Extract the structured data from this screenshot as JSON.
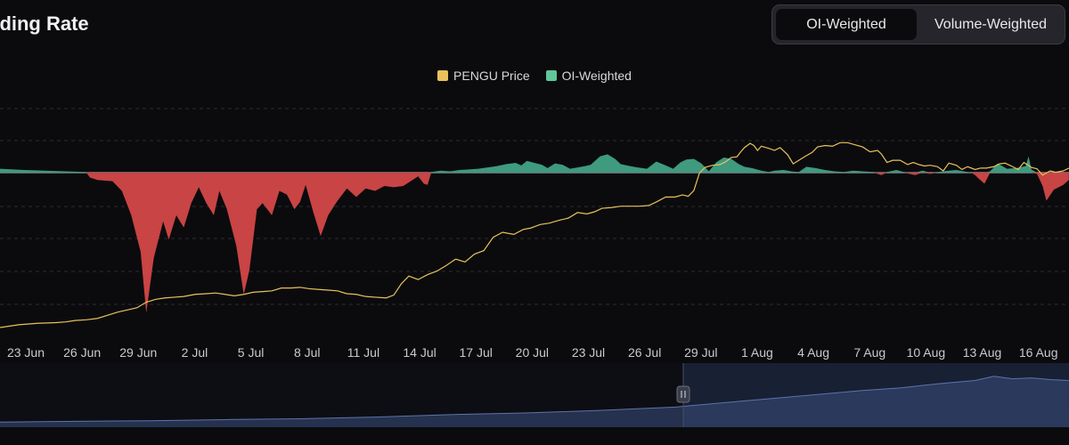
{
  "header": {
    "title": "nding Rate"
  },
  "toggle": {
    "options": [
      {
        "label": "OI-Weighted",
        "active": true
      },
      {
        "label": "Volume-Weighted",
        "active": false
      }
    ]
  },
  "legend": {
    "items": [
      {
        "label": "PENGU Price",
        "color": "#e8c25a"
      },
      {
        "label": "OI-Weighted",
        "color": "#5fc79a"
      }
    ]
  },
  "colors": {
    "positive": "#3f9a7e",
    "negative": "#c94444",
    "price": "#e8c25a",
    "navigator": "#3b4f7e"
  },
  "chart_data": {
    "type": "area",
    "x_ticks": [
      "23 Jun",
      "26 Jun",
      "29 Jun",
      "2 Jul",
      "5 Jul",
      "8 Jul",
      "11 Jul",
      "14 Jul",
      "17 Jul",
      "20 Jul",
      "23 Jul",
      "26 Jul",
      "29 Jul",
      "1 Aug",
      "4 Aug",
      "7 Aug",
      "10 Aug",
      "13 Aug",
      "16 Aug"
    ],
    "x_start": "2025-06-22",
    "x_end": "2025-08-17",
    "series": [
      {
        "name": "OI-Weighted",
        "points": [
          [
            0,
            0.6
          ],
          [
            1.3,
            0.4
          ],
          [
            3.5,
            0.2
          ],
          [
            4.6,
            0.1
          ],
          [
            4.8,
            -0.4
          ],
          [
            5.2,
            -0.6
          ],
          [
            6,
            -0.7
          ],
          [
            6.5,
            -1.5
          ],
          [
            7,
            -3.5
          ],
          [
            7.5,
            -6.5
          ],
          [
            7.8,
            -11.5
          ],
          [
            8.2,
            -7
          ],
          [
            8.7,
            -4
          ],
          [
            9,
            -5.5
          ],
          [
            9.4,
            -3.5
          ],
          [
            9.8,
            -4.5
          ],
          [
            10.2,
            -2.5
          ],
          [
            10.6,
            -1.2
          ],
          [
            11,
            -2.5
          ],
          [
            11.4,
            -3.5
          ],
          [
            11.7,
            -1.5
          ],
          [
            12.1,
            -3
          ],
          [
            12.6,
            -6
          ],
          [
            13,
            -10
          ],
          [
            13.3,
            -8
          ],
          [
            13.7,
            -3
          ],
          [
            14,
            -2.5
          ],
          [
            14.5,
            -3.5
          ],
          [
            14.9,
            -1.5
          ],
          [
            15.3,
            -1.8
          ],
          [
            15.7,
            -3
          ],
          [
            16,
            -2.4
          ],
          [
            16.3,
            -1
          ],
          [
            16.7,
            -3.2
          ],
          [
            17.1,
            -5.2
          ],
          [
            17.5,
            -3.5
          ],
          [
            18,
            -2.3
          ],
          [
            18.5,
            -1.3
          ],
          [
            19,
            -2
          ],
          [
            19.5,
            -1.3
          ],
          [
            20,
            -1.5
          ],
          [
            20.5,
            -1.1
          ],
          [
            21,
            -1.2
          ],
          [
            21.5,
            -1.1
          ],
          [
            22,
            -0.6
          ],
          [
            22.3,
            -0.3
          ],
          [
            22.6,
            -0.9
          ],
          [
            22.8,
            -1
          ],
          [
            23,
            0.1
          ],
          [
            23.5,
            0.3
          ],
          [
            24,
            0.2
          ],
          [
            24.5,
            0.4
          ],
          [
            25,
            0.5
          ],
          [
            25.5,
            0.6
          ],
          [
            26,
            0.8
          ],
          [
            26.5,
            1
          ],
          [
            27,
            1.3
          ],
          [
            27.5,
            1.5
          ],
          [
            27.8,
            1.1
          ],
          [
            28.1,
            1.8
          ],
          [
            28.5,
            1.5
          ],
          [
            28.9,
            1.2
          ],
          [
            29.2,
            0.7
          ],
          [
            29.6,
            1.4
          ],
          [
            30,
            1.2
          ],
          [
            30.4,
            0.6
          ],
          [
            30.8,
            0.8
          ],
          [
            31.2,
            1
          ],
          [
            31.5,
            1.2
          ],
          [
            32,
            2.5
          ],
          [
            32.4,
            2.8
          ],
          [
            32.8,
            2.1
          ],
          [
            33.1,
            1.3
          ],
          [
            33.6,
            1
          ],
          [
            34,
            0.8
          ],
          [
            34.5,
            0.6
          ],
          [
            35,
            1.7
          ],
          [
            35.5,
            1.1
          ],
          [
            35.9,
            0.6
          ],
          [
            36.3,
            1.6
          ],
          [
            36.6,
            2
          ],
          [
            37,
            2.1
          ],
          [
            37.4,
            1.4
          ],
          [
            37.8,
            0.2
          ],
          [
            38.2,
            1.6
          ],
          [
            38.6,
            2.3
          ],
          [
            39,
            2.1
          ],
          [
            39.4,
            1.3
          ],
          [
            39.7,
            0.9
          ],
          [
            40.1,
            0.7
          ],
          [
            40.6,
            0.3
          ],
          [
            41,
            0.1
          ],
          [
            41.3,
            0.3
          ],
          [
            41.8,
            0.4
          ],
          [
            42.2,
            0.2
          ],
          [
            42.6,
            0.1
          ],
          [
            43,
            0.9
          ],
          [
            43.5,
            0.7
          ],
          [
            44,
            0.4
          ],
          [
            44.5,
            0.2
          ],
          [
            45,
            0.1
          ],
          [
            45.5,
            0.3
          ],
          [
            46,
            0.2
          ],
          [
            46.6,
            0.1
          ],
          [
            47,
            -0.2
          ],
          [
            47.3,
            0.1
          ],
          [
            47.8,
            0.4
          ],
          [
            48.2,
            0.1
          ],
          [
            48.8,
            -0.2
          ],
          [
            49.2,
            0.3
          ],
          [
            49.6,
            -0.1
          ],
          [
            50,
            0.1
          ],
          [
            50.6,
            0.3
          ],
          [
            51,
            0.4
          ],
          [
            51.4,
            0.2
          ],
          [
            51.8,
            0
          ],
          [
            52,
            -0.2
          ],
          [
            52.2,
            -0.5
          ],
          [
            52.5,
            -0.9
          ],
          [
            52.8,
            0.2
          ],
          [
            53.2,
            1.4
          ],
          [
            53.7,
            0.6
          ],
          [
            54.2,
            0.7
          ],
          [
            54.7,
            1
          ],
          [
            54.85,
            2.5
          ],
          [
            55,
            0.5
          ],
          [
            55.3,
            -0.1
          ],
          [
            55.6,
            -1.1
          ],
          [
            55.8,
            -2.3
          ],
          [
            56.2,
            -1.4
          ],
          [
            56.7,
            -1
          ],
          [
            57,
            -0.6
          ]
        ]
      },
      {
        "name": "PENGU Price",
        "points": [
          [
            0,
            0.009
          ],
          [
            1,
            0.0094
          ],
          [
            2,
            0.0096
          ],
          [
            3,
            0.0097
          ],
          [
            3.5,
            0.0098
          ],
          [
            4,
            0.01
          ],
          [
            4.6,
            0.0101
          ],
          [
            5.2,
            0.0103
          ],
          [
            5.8,
            0.0108
          ],
          [
            6.3,
            0.0112
          ],
          [
            6.8,
            0.0115
          ],
          [
            7.3,
            0.0118
          ],
          [
            7.8,
            0.0126
          ],
          [
            8.3,
            0.013
          ],
          [
            8.8,
            0.0132
          ],
          [
            9.3,
            0.0133
          ],
          [
            9.8,
            0.0134
          ],
          [
            10.4,
            0.0137
          ],
          [
            11,
            0.0138
          ],
          [
            11.5,
            0.0139
          ],
          [
            12,
            0.0137
          ],
          [
            12.5,
            0.0135
          ],
          [
            13,
            0.0137
          ],
          [
            13.5,
            0.014
          ],
          [
            14,
            0.0141
          ],
          [
            14.5,
            0.0142
          ],
          [
            15,
            0.0146
          ],
          [
            15.5,
            0.0146
          ],
          [
            16,
            0.0147
          ],
          [
            16.5,
            0.0145
          ],
          [
            17,
            0.0144
          ],
          [
            17.5,
            0.0143
          ],
          [
            18,
            0.0142
          ],
          [
            18.5,
            0.0138
          ],
          [
            19,
            0.0137
          ],
          [
            19.5,
            0.0134
          ],
          [
            20,
            0.0133
          ],
          [
            20.6,
            0.0132
          ],
          [
            21,
            0.0136
          ],
          [
            21.4,
            0.0152
          ],
          [
            21.8,
            0.0163
          ],
          [
            22.3,
            0.0158
          ],
          [
            22.8,
            0.0165
          ],
          [
            23.3,
            0.017
          ],
          [
            23.8,
            0.0178
          ],
          [
            24.3,
            0.0187
          ],
          [
            24.8,
            0.0183
          ],
          [
            25.3,
            0.0194
          ],
          [
            25.8,
            0.0199
          ],
          [
            26.3,
            0.0218
          ],
          [
            26.8,
            0.0225
          ],
          [
            27.4,
            0.0222
          ],
          [
            27.9,
            0.0229
          ],
          [
            28.3,
            0.0231
          ],
          [
            28.8,
            0.0236
          ],
          [
            29.3,
            0.0238
          ],
          [
            29.8,
            0.0242
          ],
          [
            30.3,
            0.0245
          ],
          [
            30.8,
            0.0253
          ],
          [
            31.3,
            0.0251
          ],
          [
            31.7,
            0.0254
          ],
          [
            32.1,
            0.0259
          ],
          [
            32.6,
            0.026
          ],
          [
            33.1,
            0.0262
          ],
          [
            33.6,
            0.0262
          ],
          [
            34.1,
            0.0262
          ],
          [
            34.6,
            0.0263
          ],
          [
            35,
            0.0268
          ],
          [
            35.5,
            0.0275
          ],
          [
            36,
            0.0275
          ],
          [
            36.4,
            0.0278
          ],
          [
            36.7,
            0.0276
          ],
          [
            37,
            0.0284
          ],
          [
            37.3,
            0.0309
          ],
          [
            37.6,
            0.0317
          ],
          [
            38,
            0.032
          ],
          [
            38.4,
            0.0321
          ],
          [
            38.7,
            0.0325
          ],
          [
            39,
            0.0331
          ],
          [
            39.3,
            0.0332
          ],
          [
            39.5,
            0.0339
          ],
          [
            39.7,
            0.0345
          ],
          [
            40,
            0.0351
          ],
          [
            40.2,
            0.0348
          ],
          [
            40.4,
            0.0341
          ],
          [
            40.6,
            0.0347
          ],
          [
            41,
            0.0344
          ],
          [
            41.3,
            0.0341
          ],
          [
            41.6,
            0.0345
          ],
          [
            42,
            0.0335
          ],
          [
            42.3,
            0.0322
          ],
          [
            42.6,
            0.0327
          ],
          [
            42.9,
            0.0332
          ],
          [
            43.3,
            0.0338
          ],
          [
            43.6,
            0.0346
          ],
          [
            44,
            0.0348
          ],
          [
            44.4,
            0.0347
          ],
          [
            44.8,
            0.0352
          ],
          [
            45.2,
            0.0352
          ],
          [
            45.6,
            0.0349
          ],
          [
            46,
            0.0346
          ],
          [
            46.4,
            0.0339
          ],
          [
            46.8,
            0.0341
          ],
          [
            47,
            0.0336
          ],
          [
            47.3,
            0.0324
          ],
          [
            47.6,
            0.0327
          ],
          [
            48,
            0.0327
          ],
          [
            48.4,
            0.0321
          ],
          [
            48.7,
            0.0324
          ],
          [
            49,
            0.0321
          ],
          [
            49.3,
            0.0319
          ],
          [
            49.6,
            0.032
          ],
          [
            50,
            0.0318
          ],
          [
            50.3,
            0.0312
          ],
          [
            50.6,
            0.0323
          ],
          [
            51,
            0.032
          ],
          [
            51.3,
            0.0314
          ],
          [
            51.6,
            0.0318
          ],
          [
            52,
            0.0314
          ],
          [
            52.3,
            0.0316
          ],
          [
            52.6,
            0.0316
          ],
          [
            53,
            0.0318
          ],
          [
            53.3,
            0.0322
          ],
          [
            53.6,
            0.0323
          ],
          [
            54,
            0.0318
          ],
          [
            54.3,
            0.0314
          ],
          [
            54.6,
            0.0324
          ],
          [
            55,
            0.0317
          ],
          [
            55.3,
            0.0315
          ],
          [
            55.6,
            0.0306
          ],
          [
            56,
            0.0312
          ],
          [
            56.3,
            0.031
          ],
          [
            56.7,
            0.0312
          ],
          [
            57,
            0.0316
          ]
        ]
      },
      {
        "name": "navigator",
        "points": [
          [
            0,
            0.011
          ],
          [
            4,
            0.0115
          ],
          [
            8,
            0.0118
          ],
          [
            12,
            0.0125
          ],
          [
            16,
            0.013
          ],
          [
            20,
            0.014
          ],
          [
            24,
            0.0155
          ],
          [
            28,
            0.0165
          ],
          [
            32,
            0.018
          ],
          [
            36,
            0.02
          ],
          [
            38,
            0.022
          ],
          [
            40,
            0.024
          ],
          [
            42,
            0.026
          ],
          [
            44,
            0.028
          ],
          [
            46,
            0.03
          ],
          [
            48,
            0.0315
          ],
          [
            50,
            0.034
          ],
          [
            52,
            0.036
          ],
          [
            53,
            0.0385
          ],
          [
            54,
            0.037
          ],
          [
            55,
            0.0375
          ],
          [
            56,
            0.0365
          ],
          [
            57,
            0.036
          ]
        ]
      }
    ],
    "funding_range": [
      -13,
      8
    ],
    "price_range": [
      0.0085,
      0.0365
    ],
    "grid": true,
    "legend_position": "top-center"
  }
}
